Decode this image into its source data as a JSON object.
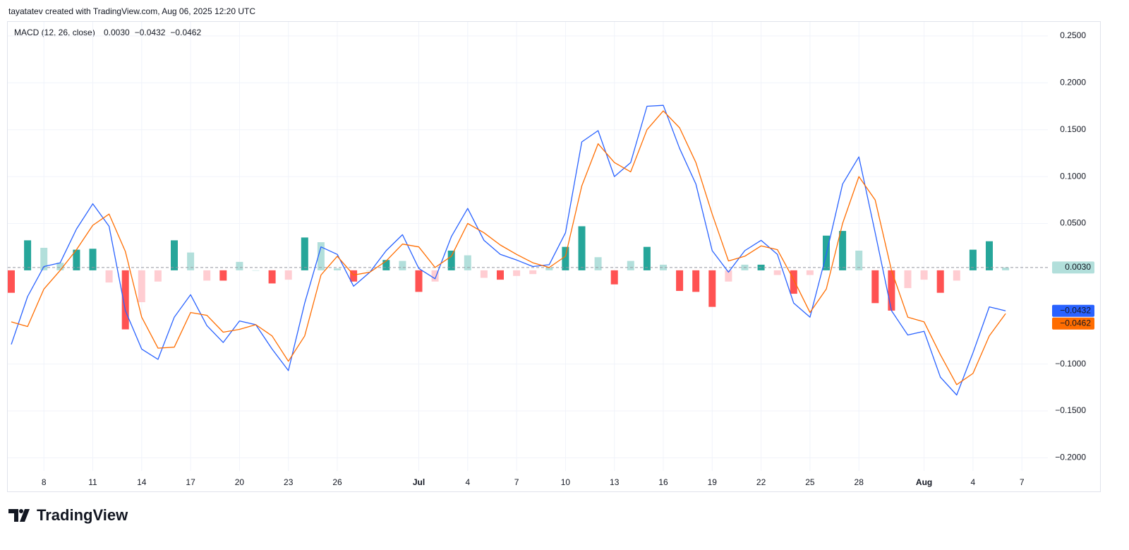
{
  "header": "tayatatev created with TradingView.com, Aug 06, 2025 12:20 UTC",
  "brand": "TradingView",
  "chart_data": {
    "type": "macd",
    "title": "MACD (12, 26, close)",
    "categories": [
      null,
      null,
      "8",
      null,
      null,
      "11",
      null,
      null,
      "14",
      null,
      null,
      "17",
      null,
      null,
      "20",
      null,
      null,
      "23",
      null,
      null,
      "26",
      null,
      null,
      null,
      null,
      "Jul",
      null,
      null,
      "4",
      null,
      null,
      "7",
      null,
      null,
      "10",
      null,
      null,
      "13",
      null,
      null,
      "16",
      null,
      null,
      "19",
      null,
      null,
      "22",
      null,
      null,
      "25",
      null,
      null,
      "28",
      null,
      null,
      null,
      "Aug",
      null,
      null,
      "4",
      null,
      null,
      "7"
    ],
    "series": [
      {
        "kind": "histogram",
        "colors": [
          "#26a69a",
          "#b2dfdb",
          "#ff5252",
          "#ffcdd2"
        ],
        "last_label": "0.0030",
        "values": [
          -0.024,
          0.032,
          0.024,
          0.008,
          0.022,
          0.023,
          -0.013,
          -0.063,
          -0.034,
          -0.012,
          0.032,
          0.019,
          -0.011,
          -0.011,
          0.009,
          0.0,
          -0.014,
          -0.01,
          0.035,
          0.03,
          0.002,
          -0.012,
          0.0,
          0.011,
          0.01,
          -0.023,
          -0.012,
          0.021,
          0.016,
          -0.008,
          -0.01,
          -0.006,
          -0.004,
          0.003,
          0.025,
          0.047,
          0.014,
          -0.015,
          0.01,
          0.025,
          0.006,
          -0.022,
          -0.023,
          -0.039,
          -0.012,
          0.006,
          0.006,
          -0.005,
          -0.025,
          -0.005,
          0.037,
          0.042,
          0.021,
          -0.035,
          -0.043,
          -0.019,
          -0.01,
          -0.024,
          -0.011,
          0.022,
          0.031,
          0.003,
          null
        ]
      },
      {
        "kind": "line",
        "color": "#2962ff",
        "last_label": "−0.0432",
        "values": [
          -0.079,
          -0.028,
          0.004,
          0.008,
          0.044,
          0.071,
          0.047,
          -0.043,
          -0.084,
          -0.095,
          -0.05,
          -0.026,
          -0.059,
          -0.077,
          -0.054,
          -0.058,
          -0.084,
          -0.107,
          -0.035,
          0.025,
          0.017,
          -0.017,
          -0.002,
          0.021,
          0.038,
          0.002,
          -0.009,
          0.036,
          0.066,
          0.032,
          0.017,
          0.011,
          0.004,
          0.006,
          0.04,
          0.137,
          0.149,
          0.1,
          0.115,
          0.175,
          0.176,
          0.13,
          0.092,
          0.021,
          -0.002,
          0.021,
          0.032,
          0.017,
          -0.035,
          -0.05,
          0.017,
          0.092,
          0.121,
          0.04,
          -0.043,
          -0.069,
          -0.065,
          -0.114,
          -0.133,
          -0.088,
          -0.039,
          -0.0432,
          null
        ]
      },
      {
        "kind": "line",
        "color": "#ff6d00",
        "last_label": "−0.0462",
        "values": [
          -0.055,
          -0.06,
          -0.02,
          0.0,
          0.022,
          0.048,
          0.06,
          0.02,
          -0.05,
          -0.083,
          -0.082,
          -0.045,
          -0.048,
          -0.066,
          -0.063,
          -0.058,
          -0.07,
          -0.097,
          -0.07,
          -0.005,
          0.015,
          -0.005,
          -0.002,
          0.01,
          0.028,
          0.025,
          0.003,
          0.015,
          0.05,
          0.04,
          0.027,
          0.017,
          0.008,
          0.003,
          0.015,
          0.09,
          0.135,
          0.115,
          0.105,
          0.15,
          0.17,
          0.152,
          0.115,
          0.06,
          0.01,
          0.015,
          0.026,
          0.022,
          -0.01,
          -0.045,
          -0.02,
          0.05,
          0.1,
          0.075,
          0.0,
          -0.05,
          -0.055,
          -0.09,
          -0.122,
          -0.11,
          -0.07,
          -0.0462,
          null
        ]
      }
    ],
    "ylim": [
      -0.214,
      0.265
    ],
    "yticks": [
      {
        "value": 0.25,
        "label": "0.2500"
      },
      {
        "value": 0.2,
        "label": "0.2000"
      },
      {
        "value": 0.15,
        "label": "0.1500"
      },
      {
        "value": 0.1,
        "label": "0.1000"
      },
      {
        "value": 0.05,
        "label": "0.0500"
      },
      {
        "value": -0.1,
        "label": "−0.1000"
      },
      {
        "value": -0.15,
        "label": "−0.1500"
      },
      {
        "value": -0.2,
        "label": "−0.2000"
      }
    ],
    "grid": true
  }
}
